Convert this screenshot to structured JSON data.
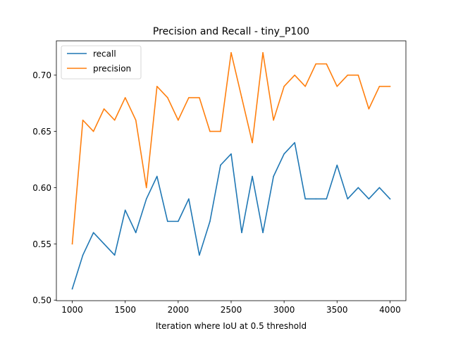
{
  "chart_data": {
    "type": "line",
    "title": "Precision and Recall - tiny_P100",
    "xlabel": "Iteration where IoU at 0.5 threshold",
    "ylabel": "",
    "xlim": [
      850,
      4150
    ],
    "ylim": [
      0.4995,
      0.7305
    ],
    "x_ticks": [
      1000,
      1500,
      2000,
      2500,
      3000,
      3500,
      4000
    ],
    "x_tick_labels": [
      "1000",
      "1500",
      "2000",
      "2500",
      "3000",
      "3500",
      "4000"
    ],
    "y_ticks": [
      0.5,
      0.55,
      0.6,
      0.65,
      0.7
    ],
    "y_tick_labels": [
      "0.50",
      "0.55",
      "0.60",
      "0.65",
      "0.70"
    ],
    "grid": false,
    "legend_position": "top-left",
    "x": [
      1000,
      1100,
      1200,
      1300,
      1400,
      1500,
      1600,
      1700,
      1800,
      1900,
      2000,
      2100,
      2200,
      2300,
      2400,
      2500,
      2600,
      2700,
      2800,
      2900,
      3000,
      3100,
      3200,
      3300,
      3400,
      3500,
      3600,
      3700,
      3800,
      3900,
      4000
    ],
    "series": [
      {
        "name": "recall",
        "color": "#1f77b4",
        "values": [
          0.51,
          0.54,
          0.56,
          0.55,
          0.54,
          0.58,
          0.56,
          0.59,
          0.61,
          0.57,
          0.57,
          0.59,
          0.54,
          0.57,
          0.62,
          0.63,
          0.56,
          0.61,
          0.56,
          0.61,
          0.63,
          0.64,
          0.59,
          0.59,
          0.59,
          0.62,
          0.59,
          0.6,
          0.59,
          0.6,
          0.59
        ]
      },
      {
        "name": "precision",
        "color": "#ff7f0e",
        "values": [
          0.55,
          0.66,
          0.65,
          0.67,
          0.66,
          0.68,
          0.66,
          0.6,
          0.69,
          0.68,
          0.66,
          0.68,
          0.68,
          0.65,
          0.65,
          0.72,
          0.68,
          0.64,
          0.72,
          0.66,
          0.69,
          0.7,
          0.69,
          0.71,
          0.71,
          0.69,
          0.7,
          0.7,
          0.67,
          0.69,
          0.69
        ]
      }
    ]
  }
}
